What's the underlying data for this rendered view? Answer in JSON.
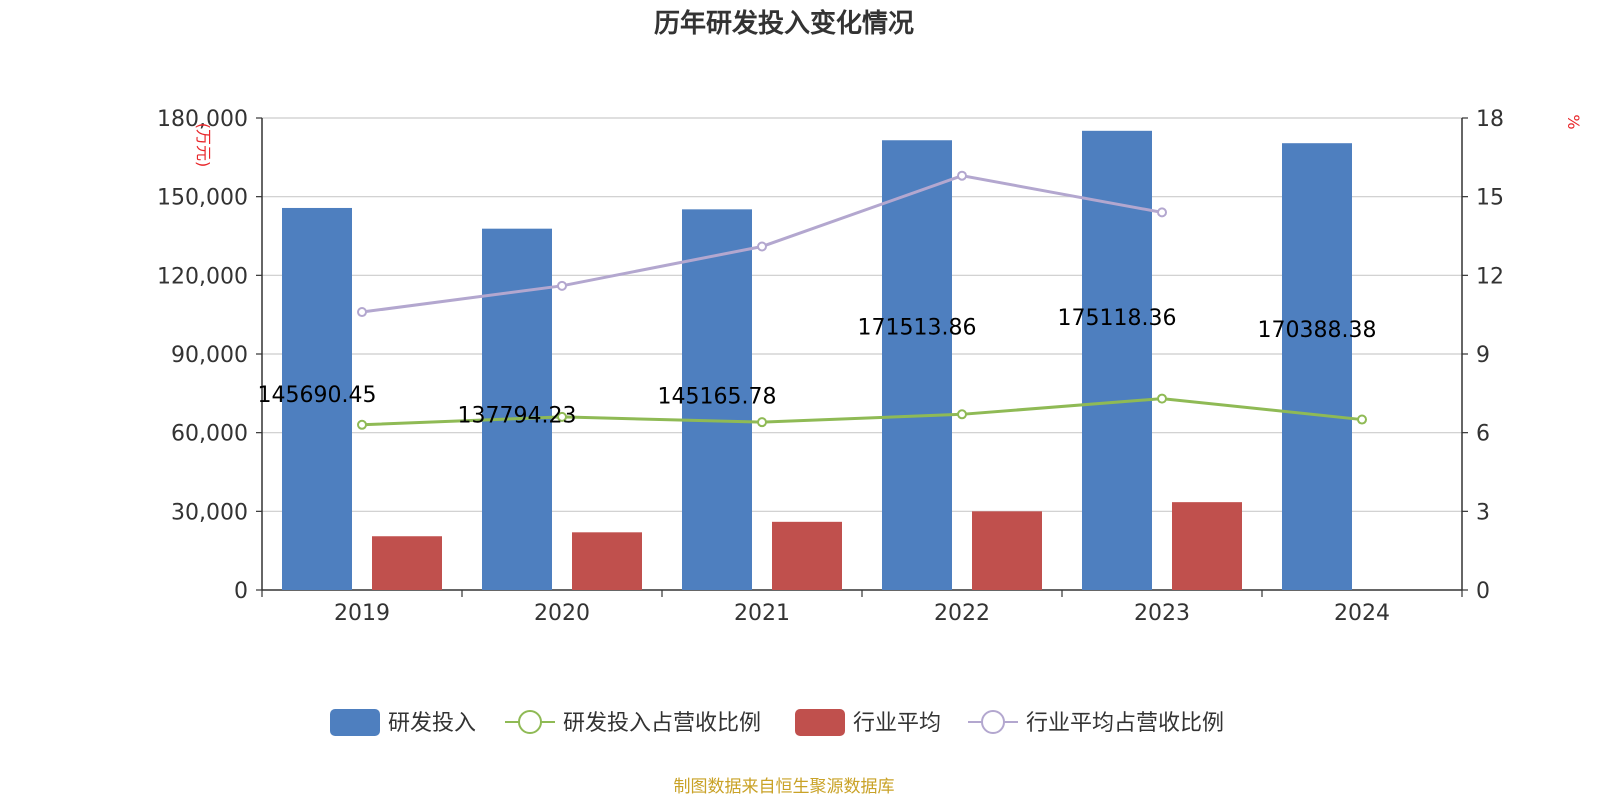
{
  "chart_data": {
    "type": "bar",
    "title": "历年研发投入变化情况",
    "categories": [
      "2019",
      "2020",
      "2021",
      "2022",
      "2023",
      "2024"
    ],
    "y_left": {
      "unit": "(万元)",
      "ticks": [
        "0",
        "30,000",
        "60,000",
        "90,000",
        "120,000",
        "150,000",
        "180,000"
      ],
      "ylim": [
        0,
        180000
      ]
    },
    "y_right": {
      "unit": "%",
      "ticks": [
        "0",
        "3",
        "6",
        "9",
        "12",
        "15",
        "18"
      ],
      "ylim": [
        0,
        18
      ]
    },
    "series": [
      {
        "name": "研发投入",
        "type": "bar",
        "axis": "left",
        "color": "#4e7fbf",
        "values": [
          145690.45,
          137794.23,
          145165.78,
          171513.86,
          175118.36,
          170388.38
        ],
        "labels": [
          "145690.45",
          "137794.23",
          "145165.78",
          "171513.86",
          "175118.36",
          "170388.38"
        ]
      },
      {
        "name": "研发投入占营收比例",
        "type": "line",
        "axis": "right",
        "color": "#8fba55",
        "values": [
          6.3,
          6.6,
          6.4,
          6.7,
          7.3,
          6.5
        ]
      },
      {
        "name": "行业平均",
        "type": "bar",
        "axis": "left",
        "color": "#c0504d",
        "values": [
          20500,
          22000,
          26000,
          30000,
          33500,
          null
        ]
      },
      {
        "name": "行业平均占营收比例",
        "type": "line",
        "axis": "right",
        "color": "#b3a7cf",
        "values": [
          10.6,
          11.6,
          13.1,
          15.8,
          14.4,
          null
        ]
      }
    ],
    "legend_position": "bottom",
    "source": "制图数据来自恒生聚源数据库"
  }
}
